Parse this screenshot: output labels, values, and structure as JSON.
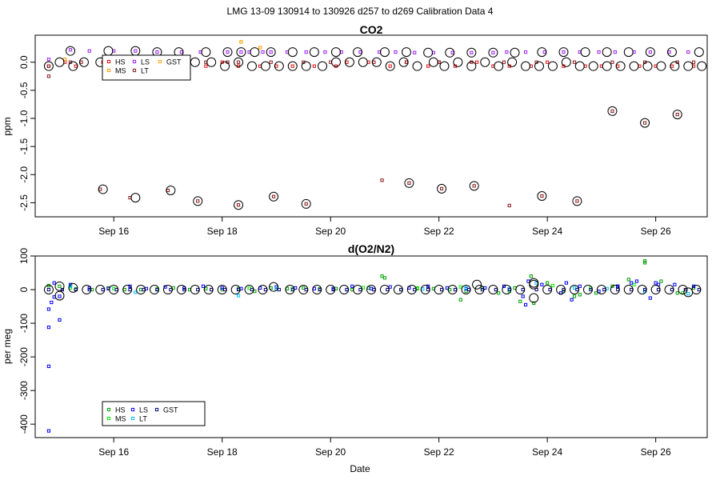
{
  "suptitle": "LMG   13-09    130914 to 130926    d257 to d269   Calibration Data 4",
  "xlabel": "Date",
  "colors": {
    "HS": "#e01010",
    "MS": "#ff9900",
    "LS": "#a020f0",
    "LT": "#8b1a1a",
    "GST": "#ffa500",
    "HS2": "#00a000",
    "MS2": "#00ee00",
    "LS2": "#0000ff",
    "LT2": "#00bfff",
    "GST2": "#000080",
    "circle": "#000000"
  },
  "chart_data": [
    {
      "type": "scatter",
      "title": "CO2",
      "ylabel": "ppm",
      "xlim": [
        14.55,
        26.95
      ],
      "ylim": [
        -2.75,
        0.48
      ],
      "yticks": [
        0.0,
        -0.5,
        -1.0,
        -1.5,
        -2.0,
        -2.5
      ],
      "ytick_labels": [
        "0.0",
        "-0.5",
        "-1.0",
        "-1.5",
        "-2.0",
        "-2.5"
      ],
      "xticks": [
        16,
        18,
        20,
        22,
        24,
        26
      ],
      "xtick_labels": [
        "Sep 16",
        "Sep 18",
        "Sep 20",
        "Sep 22",
        "Sep 24",
        "Sep 26"
      ],
      "legend": {
        "position": "top-left",
        "entries": [
          "HS",
          "MS",
          "LS",
          "LT",
          "GST"
        ]
      },
      "series": [
        {
          "name": "HS",
          "x": [
            14.8,
            15.1,
            15.3,
            15.8,
            16.2,
            16.8,
            17.2,
            17.7,
            18.0,
            18.3,
            18.7,
            19.0,
            19.3,
            19.7,
            20.1,
            20.3,
            20.7,
            21.1,
            21.4,
            21.8,
            22.0,
            22.3,
            22.7,
            23.0,
            23.3,
            23.7,
            24.0,
            24.3,
            24.7,
            25.0,
            25.3,
            25.7,
            26.0,
            26.3,
            26.7
          ],
          "y": [
            -0.07,
            0.0,
            -0.07,
            0.0,
            0.0,
            0.0,
            0.0,
            -0.07,
            0.0,
            -0.07,
            -0.07,
            -0.07,
            -0.07,
            -0.07,
            -0.07,
            0.0,
            0.0,
            -0.07,
            0.0,
            -0.07,
            0.0,
            -0.07,
            0.0,
            -0.07,
            -0.07,
            -0.07,
            0.0,
            -0.07,
            -0.07,
            -0.07,
            -0.07,
            -0.07,
            -0.07,
            -0.07,
            -0.07
          ]
        },
        {
          "name": "MS",
          "x": [
            15.1,
            18.35,
            18.7
          ],
          "y": [
            0.05,
            0.36,
            0.26
          ]
        },
        {
          "name": "LS",
          "x": [
            14.8,
            15.2,
            15.55,
            16.0,
            16.4,
            16.8,
            17.25,
            17.6,
            18.1,
            18.35,
            18.5,
            18.75,
            18.9,
            19.2,
            19.55,
            19.9,
            20.2,
            20.55,
            20.9,
            21.2,
            21.55,
            21.9,
            22.25,
            22.6,
            23.0,
            23.25,
            23.6,
            23.95,
            24.3,
            24.6,
            24.95,
            25.25,
            25.6,
            25.9,
            26.25,
            26.6
          ],
          "y": [
            0.05,
            0.22,
            0.2,
            0.2,
            0.2,
            0.18,
            0.18,
            0.18,
            0.18,
            0.18,
            0.18,
            0.18,
            0.18,
            0.18,
            0.18,
            0.18,
            0.18,
            0.18,
            0.18,
            0.18,
            0.17,
            0.17,
            0.17,
            0.17,
            0.17,
            0.18,
            0.18,
            0.18,
            0.18,
            0.18,
            0.18,
            0.18,
            0.18,
            0.18,
            0.18,
            0.18
          ]
        },
        {
          "name": "LT",
          "x": [
            14.8,
            15.2,
            15.4,
            16.0,
            16.4,
            16.8,
            17.2,
            17.7,
            18.1,
            18.3,
            18.9,
            19.5,
            20.0,
            20.8,
            21.4,
            22.0,
            22.6,
            23.2,
            23.8,
            24.5,
            25.2,
            25.8,
            26.4,
            26.7,
            14.8,
            15.75,
            16.3,
            17.0,
            17.55,
            18.3,
            18.95,
            19.55,
            20.95,
            21.45,
            22.05,
            22.65,
            23.3,
            23.9,
            24.55,
            25.2,
            25.8,
            26.4
          ],
          "y": [
            -0.25,
            0.0,
            0.0,
            0.0,
            0.0,
            0.0,
            0.0,
            0.0,
            0.0,
            0.0,
            0.0,
            0.0,
            0.0,
            0.0,
            0.0,
            0.0,
            0.0,
            0.0,
            0.0,
            0.0,
            0.0,
            0.0,
            0.0,
            0.0,
            -0.07,
            -2.26,
            -2.41,
            -2.28,
            -2.47,
            -2.54,
            -2.39,
            -2.52,
            -2.1,
            -2.15,
            -2.25,
            -2.2,
            -2.55,
            -2.38,
            -2.47,
            -0.87,
            -1.08,
            -0.93
          ]
        },
        {
          "name": "GST",
          "x": [
            18.35
          ],
          "y": [
            0.36
          ]
        },
        {
          "name": "circles",
          "x": [
            14.8,
            15.0,
            15.25,
            15.45,
            15.75,
            16.0,
            16.25,
            16.45,
            16.75,
            17.0,
            17.25,
            17.5,
            17.8,
            18.05,
            18.3,
            18.55,
            18.8,
            19.05,
            19.3,
            19.55,
            19.85,
            20.1,
            20.35,
            20.6,
            20.85,
            21.1,
            21.35,
            21.6,
            21.9,
            22.1,
            22.35,
            22.6,
            22.85,
            23.1,
            23.35,
            23.6,
            23.85,
            24.1,
            24.35,
            24.6,
            24.85,
            25.1,
            25.35,
            25.6,
            25.85,
            26.1,
            26.35,
            26.6,
            26.85,
            15.8,
            16.4,
            17.05,
            17.55,
            18.3,
            18.95,
            19.55,
            21.45,
            22.05,
            22.65,
            23.9,
            24.55,
            25.2,
            25.8,
            26.4,
            15.2,
            15.9,
            16.4,
            16.8,
            17.2,
            17.7,
            18.1,
            18.35,
            18.6,
            18.9,
            19.3,
            19.7,
            20.1,
            20.5,
            21.0,
            21.4,
            21.8,
            22.2,
            22.6,
            23.0,
            23.4,
            23.9,
            24.3,
            24.7,
            25.1,
            25.5,
            25.9,
            26.3,
            26.8
          ],
          "y": [
            -0.07,
            0.0,
            -0.07,
            0.0,
            0.0,
            0.0,
            0.0,
            0.0,
            0.0,
            0.0,
            0.0,
            0.0,
            0.0,
            -0.07,
            0.0,
            -0.07,
            -0.07,
            -0.07,
            -0.07,
            -0.07,
            -0.07,
            0.0,
            0.0,
            0.0,
            0.0,
            -0.07,
            0.0,
            -0.07,
            0.0,
            -0.07,
            0.0,
            -0.07,
            0.0,
            -0.07,
            0.0,
            -0.07,
            -0.07,
            -0.07,
            0.0,
            -0.07,
            -0.07,
            -0.07,
            -0.07,
            -0.07,
            -0.07,
            -0.07,
            -0.07,
            -0.07,
            -0.07,
            -2.26,
            -2.41,
            -2.28,
            -2.47,
            -2.54,
            -2.39,
            -2.52,
            -2.15,
            -2.25,
            -2.2,
            -2.38,
            -2.47,
            -0.87,
            -1.08,
            -0.93,
            0.2,
            0.2,
            0.2,
            0.18,
            0.18,
            0.18,
            0.18,
            0.18,
            0.18,
            0.18,
            0.18,
            0.18,
            0.18,
            0.18,
            0.18,
            0.18,
            0.17,
            0.17,
            0.17,
            0.17,
            0.17,
            0.18,
            0.18,
            0.18,
            0.18,
            0.18,
            0.18,
            0.18,
            0.18
          ]
        }
      ]
    },
    {
      "type": "scatter",
      "title": "d(O2/N2)",
      "ylabel": "per meg",
      "xlim": [
        14.55,
        26.95
      ],
      "ylim": [
        -440,
        100
      ],
      "yticks": [
        100,
        0,
        -100,
        -200,
        -300,
        -400
      ],
      "ytick_labels": [
        "100",
        "0",
        "-100",
        "-200",
        "-300",
        "-400"
      ],
      "xticks": [
        16,
        18,
        20,
        22,
        24,
        26
      ],
      "xtick_labels": [
        "Sep 16",
        "Sep 18",
        "Sep 20",
        "Sep 22",
        "Sep 24",
        "Sep 26"
      ],
      "legend": {
        "position": "bottom-left",
        "entries": [
          "HS",
          "MS",
          "LS",
          "LT",
          "GST"
        ]
      },
      "series": [
        {
          "name": "HS",
          "x": [
            14.8,
            15.0,
            15.3,
            15.6,
            15.9,
            16.2,
            16.5,
            16.8,
            17.1,
            17.4,
            17.7,
            18.0,
            18.3,
            18.6,
            18.9,
            19.2,
            19.5,
            19.8,
            20.1,
            20.4,
            20.7,
            21.0,
            21.3,
            21.6,
            21.9,
            22.2,
            22.5,
            22.8,
            23.1,
            23.4,
            23.7,
            24.0,
            24.3,
            24.6,
            24.9,
            25.2,
            25.5,
            25.8,
            26.1,
            26.4,
            26.7,
            20.95,
            23.75,
            25.8,
            22.4,
            23.5,
            24.5
          ],
          "y": [
            12,
            10,
            2,
            0,
            5,
            0,
            0,
            0,
            5,
            0,
            3,
            0,
            3,
            -5,
            5,
            3,
            5,
            2,
            3,
            0,
            5,
            35,
            0,
            3,
            3,
            0,
            -5,
            5,
            -10,
            5,
            40,
            20,
            -5,
            -15,
            -10,
            10,
            30,
            80,
            25,
            -10,
            5,
            40,
            -40,
            85,
            -30,
            -35,
            -20
          ]
        },
        {
          "name": "MS",
          "x": [
            15.2,
            16.0,
            16.8,
            18.5,
            19.3,
            20.6,
            21.6,
            22.4,
            23.3,
            24.1,
            24.8,
            25.6,
            26.5
          ],
          "y": [
            5,
            3,
            2,
            4,
            2,
            6,
            5,
            8,
            -5,
            12,
            5,
            15,
            -10
          ]
        },
        {
          "name": "LS",
          "x": [
            14.8,
            14.8,
            14.8,
            14.8,
            14.85,
            14.9,
            15.0,
            15.0,
            14.9,
            15.2,
            15.55,
            15.9,
            16.3,
            16.6,
            16.95,
            17.3,
            17.65,
            18.0,
            18.35,
            18.7,
            19.0,
            19.35,
            19.7,
            20.05,
            20.4,
            20.75,
            21.1,
            21.45,
            21.8,
            22.15,
            22.5,
            22.85,
            23.2,
            23.55,
            23.9,
            24.25,
            24.6,
            24.95,
            25.3,
            25.65,
            26.0,
            26.35,
            26.7,
            23.6,
            23.65,
            24.35,
            24.45,
            25.3,
            25.55,
            25.9,
            26.05
          ],
          "y": [
            -420,
            -228,
            -112,
            -58,
            -38,
            -22,
            -20,
            -90,
            20,
            15,
            5,
            3,
            10,
            3,
            8,
            5,
            10,
            5,
            3,
            5,
            8,
            5,
            3,
            3,
            10,
            3,
            8,
            5,
            10,
            5,
            3,
            5,
            10,
            -20,
            15,
            -10,
            10,
            -5,
            10,
            25,
            20,
            15,
            10,
            -45,
            25,
            20,
            -30,
            10,
            20,
            -25,
            15
          ]
        },
        {
          "name": "LT",
          "x": [
            15.2,
            16.4,
            18.3,
            19.0,
            20.3,
            21.7,
            22.5,
            23.3,
            23.8,
            24.5,
            25.1,
            25.8,
            26.6
          ],
          "y": [
            10,
            -8,
            -18,
            2,
            0,
            2,
            5,
            3,
            20,
            5,
            3,
            -5,
            -12
          ]
        },
        {
          "name": "GST",
          "x": [
            14.8,
            15.05,
            15.3,
            15.55,
            15.8,
            16.05,
            16.3,
            16.55,
            16.8,
            17.05,
            17.3,
            17.55,
            17.8,
            18.05,
            18.3,
            18.55,
            18.8,
            19.05,
            19.3,
            19.55,
            19.8,
            20.05,
            20.3,
            20.55,
            20.8,
            21.05,
            21.3,
            21.55,
            21.8,
            22.05,
            22.3,
            22.55,
            22.8,
            23.05,
            23.3,
            23.55,
            23.8,
            24.05,
            24.3,
            24.55,
            24.8,
            25.05,
            25.3,
            25.55,
            25.8,
            26.05,
            26.3,
            26.55,
            26.8
          ],
          "y": [
            0,
            0,
            0,
            0,
            0,
            0,
            0,
            0,
            0,
            0,
            0,
            0,
            0,
            0,
            0,
            0,
            0,
            0,
            0,
            0,
            0,
            0,
            0,
            0,
            0,
            0,
            0,
            0,
            0,
            0,
            0,
            0,
            0,
            0,
            0,
            0,
            0,
            0,
            0,
            0,
            0,
            0,
            0,
            0,
            0,
            0,
            0,
            0,
            0
          ]
        },
        {
          "name": "circles",
          "x": [
            14.8,
            15.0,
            15.25,
            15.5,
            15.75,
            16.0,
            16.25,
            16.5,
            16.75,
            17.0,
            17.25,
            17.5,
            17.75,
            18.0,
            18.25,
            18.5,
            18.75,
            18.95,
            19.25,
            19.5,
            19.75,
            20.0,
            20.25,
            20.5,
            20.75,
            21.0,
            21.25,
            21.5,
            21.75,
            22.0,
            22.25,
            22.5,
            22.75,
            23.0,
            23.25,
            23.5,
            23.75,
            24.0,
            24.25,
            24.5,
            24.75,
            25.0,
            25.25,
            25.5,
            25.75,
            26.0,
            26.25,
            26.5,
            26.75,
            15.0,
            23.75,
            23.75,
            22.7,
            26.6
          ],
          "y": [
            0,
            10,
            5,
            0,
            0,
            0,
            0,
            0,
            0,
            0,
            0,
            0,
            0,
            0,
            0,
            0,
            0,
            8,
            0,
            0,
            0,
            0,
            0,
            0,
            0,
            0,
            0,
            0,
            0,
            0,
            0,
            0,
            0,
            0,
            0,
            0,
            15,
            0,
            0,
            0,
            0,
            0,
            0,
            0,
            0,
            0,
            0,
            0,
            0,
            -18,
            20,
            -25,
            15,
            -8
          ]
        }
      ]
    }
  ]
}
